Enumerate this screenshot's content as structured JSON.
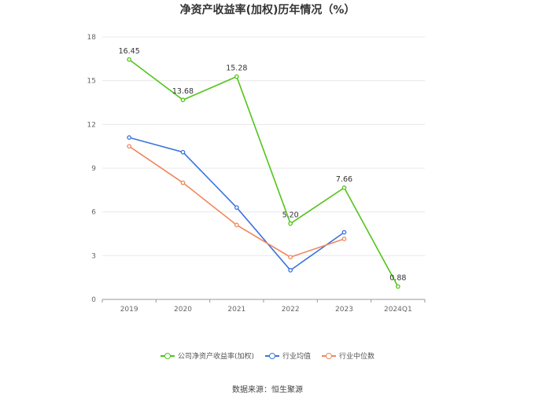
{
  "chart_data": {
    "type": "line",
    "title": "净资产收益率(加权)历年情况（%）",
    "categories": [
      "2019",
      "2020",
      "2021",
      "2022",
      "2023",
      "2024Q1"
    ],
    "ylim": [
      0,
      18
    ],
    "yticks": [
      0,
      3,
      6,
      9,
      12,
      15,
      18
    ],
    "grid": true,
    "legend_position": "bottom",
    "series": [
      {
        "name": "公司净资产收益率(加权)",
        "color": "#52c41a",
        "values": [
          16.45,
          13.68,
          15.28,
          5.2,
          7.66,
          0.88
        ],
        "labels": [
          "16.45",
          "13.68",
          "15.28",
          "5.20",
          "7.66",
          "0.88"
        ]
      },
      {
        "name": "行业均值",
        "color": "#3b73dd",
        "values": [
          11.1,
          10.1,
          6.3,
          2.0,
          4.6,
          null
        ]
      },
      {
        "name": "行业中位数",
        "color": "#f0875e",
        "values": [
          10.5,
          8.0,
          5.1,
          2.9,
          4.15,
          null
        ]
      }
    ]
  },
  "footer": {
    "source": "数据来源：恒生聚源"
  }
}
